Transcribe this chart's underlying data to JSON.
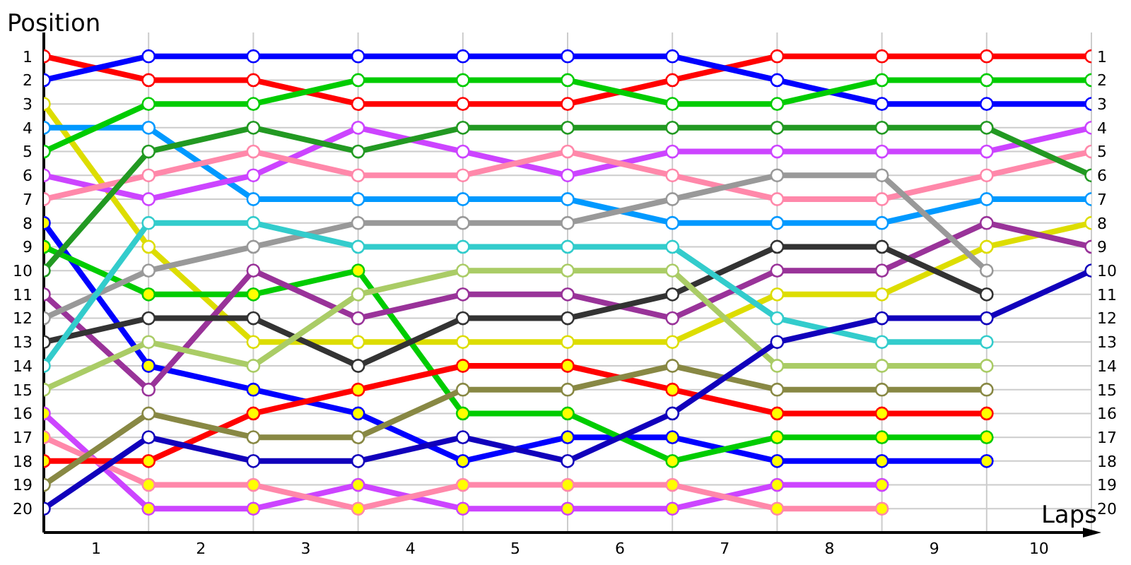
{
  "chart_data": {
    "type": "line",
    "xlabel": "Laps",
    "ylabel": "Position",
    "x": [
      0,
      1,
      2,
      3,
      4,
      5,
      6,
      7,
      8,
      9,
      10
    ],
    "xlim": [
      0,
      10
    ],
    "xticks": [
      {
        "value": 0.5,
        "label": "1"
      },
      {
        "value": 1,
        "label": null
      },
      {
        "value": 1.5,
        "label": "2"
      },
      {
        "value": 2,
        "label": null
      },
      {
        "value": 2.5,
        "label": "3"
      },
      {
        "value": 3,
        "label": null
      },
      {
        "value": 3.5,
        "label": "4"
      },
      {
        "value": 4,
        "label": null
      },
      {
        "value": 4.5,
        "label": "5"
      },
      {
        "value": 5,
        "label": null
      },
      {
        "value": 5.5,
        "label": "6"
      },
      {
        "value": 6,
        "label": null
      },
      {
        "value": 6.5,
        "label": "7"
      },
      {
        "value": 7,
        "label": null
      },
      {
        "value": 7.5,
        "label": "8"
      },
      {
        "value": 8,
        "label": null
      },
      {
        "value": 8.5,
        "label": "9"
      },
      {
        "value": 9,
        "label": null
      },
      {
        "value": 9.5,
        "label": "10"
      },
      {
        "value": 10,
        "label": null
      }
    ],
    "ylim": [
      21,
      0
    ],
    "yticks": [
      1,
      2,
      3,
      4,
      5,
      6,
      7,
      8,
      9,
      10,
      11,
      12,
      13,
      14,
      15,
      16,
      17,
      18,
      19,
      20
    ],
    "y2lim": [
      21,
      0
    ],
    "y2ticks": [
      1,
      2,
      3,
      4,
      5,
      6,
      7,
      8,
      9,
      10,
      11,
      12,
      13,
      14,
      15,
      16,
      17,
      18,
      19,
      20
    ],
    "grid": true,
    "marker": "circle",
    "series": [
      {
        "color": "#ff0000",
        "values": [
          1,
          2,
          2,
          3,
          3,
          3,
          2,
          1,
          1,
          1,
          1
        ]
      },
      {
        "color": "#0000ff",
        "values": [
          2,
          1,
          1,
          1,
          1,
          1,
          1,
          2,
          3,
          3,
          3
        ]
      },
      {
        "color": "#dddd00",
        "values": [
          3,
          9,
          13,
          13,
          13,
          13,
          13,
          11,
          11,
          9,
          8
        ]
      },
      {
        "color": "#0099ff",
        "values": [
          4,
          4,
          7,
          7,
          7,
          7,
          8,
          8,
          8,
          7,
          7
        ]
      },
      {
        "color": "#00cc00",
        "values": [
          5,
          3,
          3,
          2,
          2,
          2,
          3,
          3,
          2,
          2,
          2
        ]
      },
      {
        "color": "#cc44ff",
        "values": [
          6,
          7,
          6,
          4,
          5,
          6,
          5,
          5,
          5,
          5,
          4
        ]
      },
      {
        "color": "#ff88aa",
        "values": [
          7,
          6,
          5,
          6,
          6,
          5,
          6,
          7,
          7,
          6,
          5
        ]
      },
      {
        "color": "#0000ff",
        "values": [
          8,
          14,
          15,
          16,
          18,
          17,
          17,
          18,
          18,
          18,
          null
        ],
        "colors": [
          "#ffff00",
          "#ffff00",
          "#ffff00",
          "#ffff00",
          "#ffff00",
          "#ffff00",
          "#ffff00",
          "#ffff00",
          "#ffff00",
          "#ffff00",
          null
        ]
      },
      {
        "color": "#00cc00",
        "values": [
          9,
          11,
          11,
          10,
          16,
          16,
          18,
          17,
          17,
          17,
          null
        ],
        "colors": [
          "#ffff00",
          "#ffff00",
          "#ffff00",
          "#ffff00",
          "#ffff00",
          "#ffff00",
          "#ffff00",
          "#ffff00",
          "#ffff00",
          "#ffff00",
          null
        ]
      },
      {
        "color": "#229922",
        "values": [
          10,
          5,
          4,
          5,
          4,
          4,
          4,
          4,
          4,
          4,
          6
        ]
      },
      {
        "color": "#993399",
        "values": [
          11,
          15,
          10,
          12,
          11,
          11,
          12,
          10,
          10,
          8,
          9
        ]
      },
      {
        "color": "#999999",
        "values": [
          12,
          10,
          9,
          8,
          8,
          8,
          7,
          6,
          6,
          10,
          null
        ]
      },
      {
        "color": "#333333",
        "values": [
          13,
          12,
          12,
          14,
          12,
          12,
          11,
          9,
          9,
          11,
          null
        ]
      },
      {
        "color": "#33cccc",
        "values": [
          14,
          8,
          8,
          9,
          9,
          9,
          9,
          12,
          13,
          13,
          null
        ]
      },
      {
        "color": "#aacc66",
        "values": [
          15,
          13,
          14,
          11,
          10,
          10,
          10,
          14,
          14,
          14,
          null
        ]
      },
      {
        "color": "#cc44ff",
        "values": [
          16,
          20,
          20,
          19,
          20,
          20,
          20,
          19,
          19,
          null,
          null
        ],
        "colors": [
          "#ffff00",
          "#ffff00",
          "#ffff00",
          "#ffff00",
          "#ffff00",
          "#ffff00",
          "#ffff00",
          "#ffff00",
          "#ffff00",
          null,
          null
        ]
      },
      {
        "color": "#ff88aa",
        "values": [
          17,
          19,
          19,
          20,
          19,
          19,
          19,
          20,
          20,
          null,
          null
        ],
        "colors": [
          "#ffff00",
          "#ffff00",
          "#ffff00",
          "#ffff00",
          "#ffff00",
          "#ffff00",
          "#ffff00",
          "#ffff00",
          "#ffff00",
          null,
          null
        ]
      },
      {
        "color": "#ff0000",
        "values": [
          18,
          18,
          16,
          15,
          14,
          14,
          15,
          16,
          16,
          16,
          null
        ],
        "colors": [
          "#ffff00",
          "#ffff00",
          "#ffff00",
          "#ffff00",
          "#ffff00",
          "#ffff00",
          "#ffff00",
          "#ffff00",
          "#ffff00",
          "#ffff00",
          null
        ]
      },
      {
        "color": "#888844",
        "values": [
          19,
          16,
          17,
          17,
          15,
          15,
          14,
          15,
          15,
          15,
          null
        ]
      },
      {
        "color": "#1100bb",
        "values": [
          20,
          17,
          18,
          18,
          17,
          18,
          16,
          13,
          12,
          12,
          10
        ]
      }
    ]
  }
}
